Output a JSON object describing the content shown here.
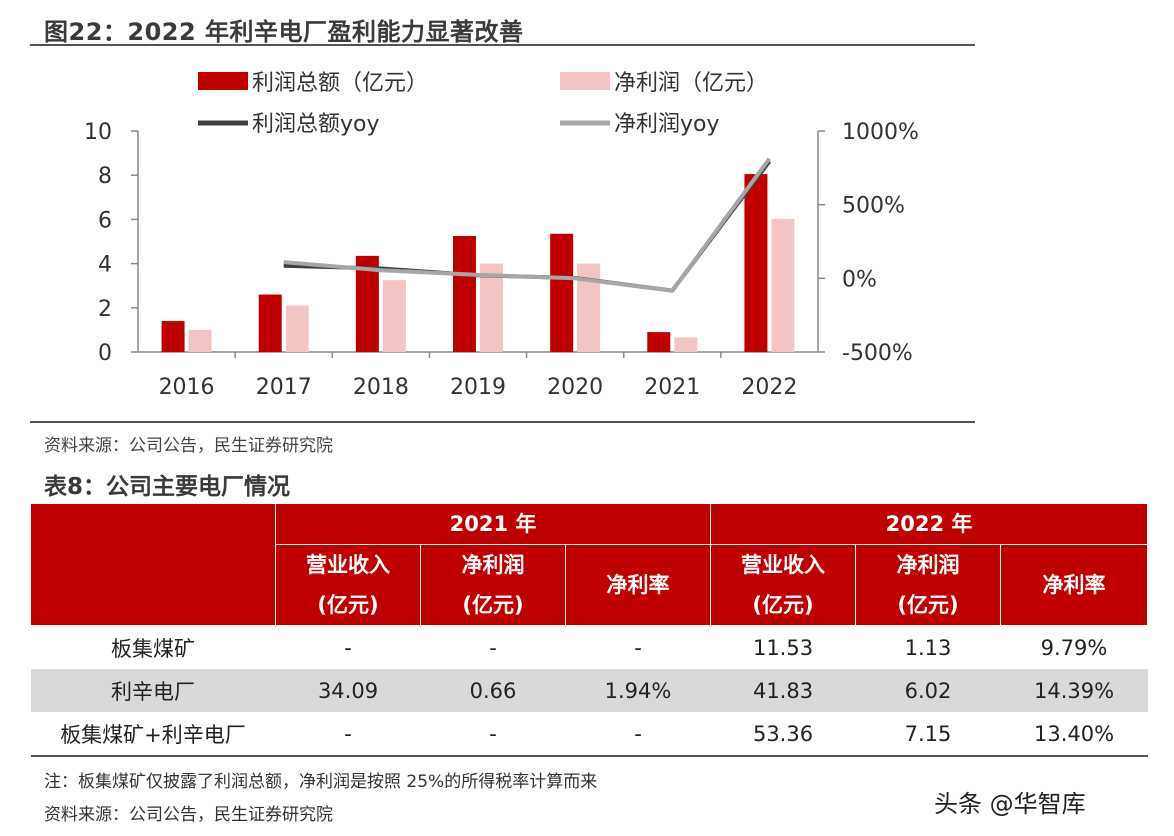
{
  "figure": {
    "title": "图22：2022 年利辛电厂盈利能力显著改善",
    "source": "资料来源：公司公告，民生证券研究院"
  },
  "chart_data": {
    "type": "bar",
    "categories": [
      "2016",
      "2017",
      "2018",
      "2019",
      "2020",
      "2021",
      "2022"
    ],
    "series": [
      {
        "name": "利润总额（亿元）",
        "kind": "bar",
        "axis": "left",
        "color": "#c00000",
        "values": [
          1.4,
          2.6,
          4.35,
          5.25,
          5.35,
          0.9,
          8.05
        ]
      },
      {
        "name": "净利润（亿元）",
        "kind": "bar",
        "axis": "left",
        "color": "#f2c4c4",
        "values": [
          1.0,
          2.1,
          3.25,
          4.0,
          4.0,
          0.66,
          6.02
        ]
      },
      {
        "name": "利润总额yoy",
        "kind": "line",
        "axis": "right",
        "color": "#404040",
        "values": [
          null,
          86,
          67,
          21,
          2,
          -83,
          794
        ]
      },
      {
        "name": "净利润yoy",
        "kind": "line",
        "axis": "right",
        "color": "#a6a6a6",
        "values": [
          null,
          110,
          55,
          23,
          0,
          -84,
          812
        ]
      }
    ],
    "y_left": {
      "min": 0,
      "max": 10,
      "ticks": [
        "0",
        "2",
        "4",
        "6",
        "8",
        "10"
      ]
    },
    "y_right": {
      "min": -500,
      "max": 1000,
      "ticks": [
        "-500%",
        "0%",
        "500%",
        "1000%"
      ]
    },
    "legend_position": "top",
    "grid": false
  },
  "table": {
    "title": "表8：公司主要电厂情况",
    "year_headers": [
      "2021 年",
      "2022 年"
    ],
    "col_headers": [
      [
        "营业收入",
        "(亿元)"
      ],
      [
        "净利润",
        "(亿元)"
      ],
      [
        "净利率"
      ],
      [
        "营业收入",
        "(亿元)"
      ],
      [
        "净利润",
        "(亿元)"
      ],
      [
        "净利率"
      ]
    ],
    "rows": [
      {
        "name": "板集煤矿",
        "cells": [
          "-",
          "-",
          "-",
          "11.53",
          "1.13",
          "9.79%"
        ]
      },
      {
        "name": "利辛电厂",
        "cells": [
          "34.09",
          "0.66",
          "1.94%",
          "41.83",
          "6.02",
          "14.39%"
        ]
      },
      {
        "name": "板集煤矿+利辛电厂",
        "cells": [
          "-",
          "-",
          "-",
          "53.36",
          "7.15",
          "13.40%"
        ]
      }
    ],
    "note": "注：板集煤矿仅披露了利润总额，净利润是按照 25%的所得税率计算而来",
    "source": "资料来源：公司公告，民生证券研究院"
  },
  "watermark": "头条 @华智库"
}
